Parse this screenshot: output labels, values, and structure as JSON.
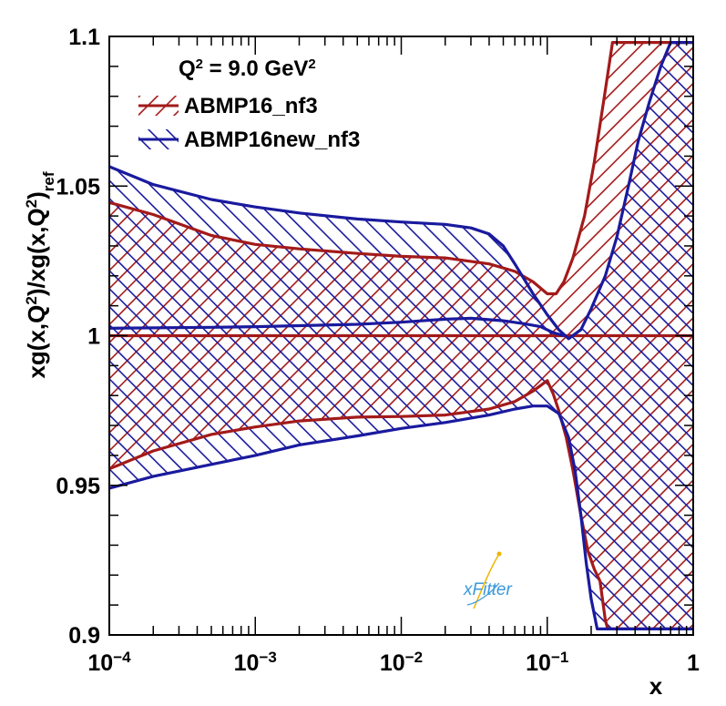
{
  "chart_data": {
    "type": "area",
    "xscale": "log",
    "xlim": [
      0.0001,
      1
    ],
    "ylim": [
      0.9,
      1.1
    ],
    "x_tick_labels": [
      {
        "value": 0.0001,
        "base": "10",
        "exp": "−4"
      },
      {
        "value": 0.001,
        "base": "10",
        "exp": "−3"
      },
      {
        "value": 0.01,
        "base": "10",
        "exp": "−2"
      },
      {
        "value": 0.1,
        "base": "10",
        "exp": "−1"
      },
      {
        "value": 1,
        "base": "1",
        "exp": ""
      }
    ],
    "y_tick_labels": [
      {
        "value": 0.9,
        "label": "0.9"
      },
      {
        "value": 0.95,
        "label": "0.95"
      },
      {
        "value": 1.0,
        "label": "1"
      },
      {
        "value": 1.05,
        "label": "1.05"
      },
      {
        "value": 1.1,
        "label": "1.1"
      }
    ],
    "xlabel": "x",
    "ylabel": {
      "p1": "xg(x,Q",
      "s1": "2",
      "p2": ")/xg(x,Q",
      "s2": "2",
      "p3": ")",
      "sub": "ref"
    },
    "annotation": {
      "prefix": "Q",
      "sup1": "2",
      "middle": " = 9.0 GeV",
      "sup2": "2"
    },
    "grid": false,
    "legend_position": "top-left",
    "series": [
      {
        "name": "ABMP16_nf3",
        "color": "#a31a1a",
        "hatch": "forward-diagonal",
        "central": {
          "x": [
            0.0001,
            1
          ],
          "y": [
            1.0,
            1.0
          ]
        },
        "upper": {
          "x": [
            0.0001,
            0.0002,
            0.0005,
            0.001,
            0.002,
            0.005,
            0.01,
            0.02,
            0.04,
            0.06,
            0.08,
            0.1,
            0.115,
            0.13,
            0.15,
            0.18,
            0.21,
            0.25,
            0.28,
            1
          ],
          "y": [
            1.0445,
            1.0405,
            1.0335,
            1.0305,
            1.029,
            1.0275,
            1.0265,
            1.026,
            1.024,
            1.0215,
            1.018,
            1.014,
            1.014,
            1.018,
            1.026,
            1.04,
            1.058,
            1.082,
            1.098,
            1.098
          ]
        },
        "lower": {
          "x": [
            0.0001,
            0.0002,
            0.0005,
            0.001,
            0.002,
            0.005,
            0.01,
            0.02,
            0.04,
            0.06,
            0.08,
            0.1,
            0.11,
            0.12,
            0.135,
            0.15,
            0.17,
            0.19,
            0.21,
            0.23,
            0.25,
            0.26,
            1
          ],
          "y": [
            0.9555,
            0.9615,
            0.967,
            0.9695,
            0.9715,
            0.9728,
            0.973,
            0.9735,
            0.9755,
            0.978,
            0.9815,
            0.985,
            0.9805,
            0.975,
            0.966,
            0.955,
            0.94,
            0.928,
            0.922,
            0.918,
            0.905,
            0.902,
            0.902
          ]
        }
      },
      {
        "name": "ABMP16new_nf3",
        "color": "#1a1a9e",
        "hatch": "back-diagonal",
        "central": {
          "x": [
            0.0001,
            0.0005,
            0.001,
            0.005,
            0.01,
            0.02,
            0.03,
            0.05,
            0.07,
            0.09,
            0.11,
            0.13
          ],
          "y": [
            1.0025,
            1.0028,
            1.003,
            1.0038,
            1.0045,
            1.0055,
            1.0058,
            1.005,
            1.004,
            1.003,
            1.001,
            1.0
          ]
        },
        "upper": {
          "x": [
            0.0001,
            0.0002,
            0.0005,
            0.001,
            0.002,
            0.005,
            0.01,
            0.02,
            0.03,
            0.04,
            0.05,
            0.06,
            0.08,
            0.1,
            0.12,
            0.14,
            0.17,
            0.2,
            0.25,
            0.3,
            0.36,
            0.42,
            0.5,
            0.6,
            0.7,
            0.78,
            1
          ],
          "y": [
            1.0565,
            1.0505,
            1.0455,
            1.043,
            1.041,
            1.039,
            1.038,
            1.0372,
            1.036,
            1.034,
            1.03,
            1.024,
            1.014,
            1.007,
            1.002,
            0.999,
            1.002,
            1.009,
            1.02,
            1.033,
            1.05,
            1.065,
            1.078,
            1.09,
            1.098,
            1.098,
            1.098
          ]
        },
        "lower": {
          "x": [
            0.0001,
            0.0002,
            0.0005,
            0.001,
            0.002,
            0.005,
            0.01,
            0.02,
            0.04,
            0.06,
            0.08,
            0.1,
            0.12,
            0.14,
            0.155,
            0.17,
            0.185,
            0.2,
            0.22,
            0.3,
            0.4,
            0.55,
            0.7,
            0.8,
            1
          ],
          "y": [
            0.949,
            0.953,
            0.957,
            0.96,
            0.9635,
            0.9665,
            0.969,
            0.971,
            0.9735,
            0.9755,
            0.9765,
            0.9765,
            0.974,
            0.966,
            0.955,
            0.94,
            0.924,
            0.912,
            0.902,
            0.902,
            0.902,
            0.902,
            0.902,
            0.902,
            0.902
          ]
        }
      }
    ]
  },
  "logo": {
    "prefix": "x",
    "rest": "Fitter"
  }
}
